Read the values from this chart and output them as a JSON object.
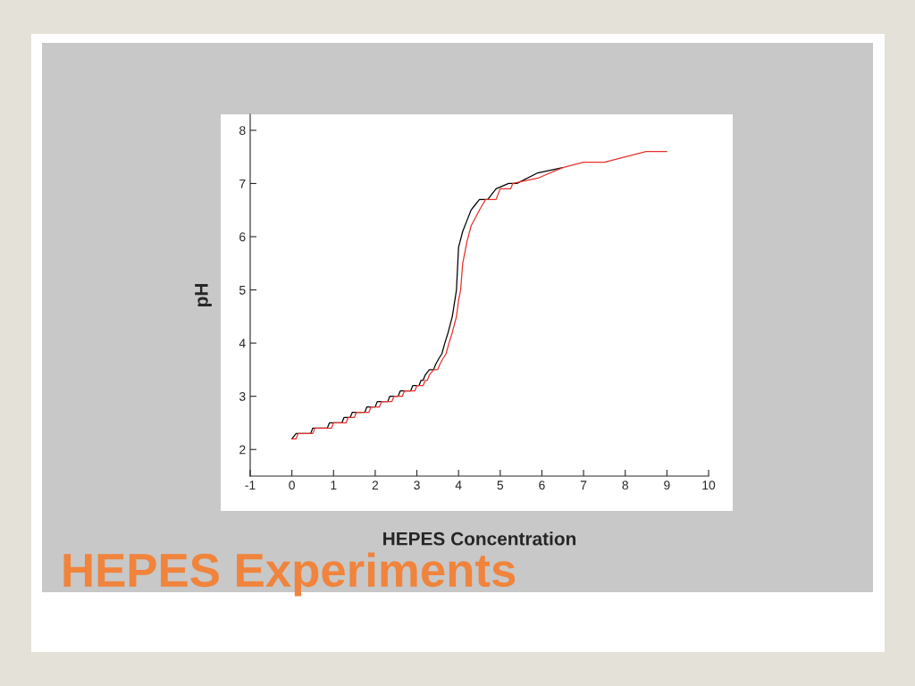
{
  "chart_data": {
    "type": "line",
    "title": "HEPES Experiments",
    "xlabel": "HEPES Concentration",
    "ylabel": "pH",
    "xlim": [
      -1,
      10
    ],
    "xticks": [
      -1,
      0,
      1,
      2,
      3,
      4,
      5,
      6,
      7,
      8,
      9,
      10
    ],
    "ylim": [
      1.5,
      8.3
    ],
    "yticks": [
      2,
      3,
      4,
      5,
      6,
      7,
      8
    ],
    "grid": false,
    "legend": false,
    "marker": "none",
    "line_style": "solid",
    "series": [
      {
        "color": "#000000",
        "x": [
          0,
          0.1,
          0.45,
          0.5,
          0.85,
          0.9,
          1.2,
          1.25,
          1.4,
          1.45,
          1.75,
          1.8,
          2.0,
          2.05,
          2.3,
          2.35,
          2.55,
          2.6,
          2.85,
          2.9,
          3.05,
          3.1,
          3.15,
          3.2,
          3.3,
          3.4,
          3.45,
          3.52,
          3.6,
          3.67,
          3.75,
          3.85,
          3.95,
          4.0,
          4.1,
          4.2,
          4.3,
          4.4,
          4.5,
          4.7,
          4.9,
          5.2,
          5.4,
          5.9,
          6.5
        ],
        "values": [
          2.2,
          2.3,
          2.3,
          2.4,
          2.4,
          2.5,
          2.5,
          2.6,
          2.6,
          2.7,
          2.7,
          2.8,
          2.8,
          2.9,
          2.9,
          3.0,
          3.0,
          3.1,
          3.1,
          3.2,
          3.2,
          3.3,
          3.3,
          3.4,
          3.5,
          3.5,
          3.6,
          3.7,
          3.8,
          4.0,
          4.2,
          4.5,
          5.0,
          5.8,
          6.1,
          6.3,
          6.5,
          6.6,
          6.7,
          6.7,
          6.9,
          7.0,
          7.0,
          7.2,
          7.3
        ]
      },
      {
        "color": "#e8302a",
        "x": [
          0,
          0.1,
          0.15,
          0.5,
          0.55,
          0.95,
          1.0,
          1.3,
          1.35,
          1.5,
          1.55,
          1.85,
          1.9,
          2.1,
          2.15,
          2.4,
          2.45,
          2.65,
          2.7,
          2.95,
          3.0,
          3.15,
          3.2,
          3.25,
          3.3,
          3.4,
          3.5,
          3.55,
          3.62,
          3.7,
          3.77,
          3.85,
          3.95,
          4.0,
          4.05,
          4.1,
          4.2,
          4.3,
          4.5,
          4.65,
          4.9,
          5.0,
          5.25,
          5.3,
          5.9,
          6.5,
          7.0,
          7.5,
          8.5,
          9.0
        ],
        "values": [
          2.2,
          2.2,
          2.3,
          2.3,
          2.4,
          2.4,
          2.5,
          2.5,
          2.6,
          2.6,
          2.7,
          2.7,
          2.8,
          2.8,
          2.9,
          2.9,
          3.0,
          3.0,
          3.1,
          3.1,
          3.2,
          3.2,
          3.3,
          3.3,
          3.4,
          3.5,
          3.5,
          3.6,
          3.7,
          3.8,
          4.0,
          4.2,
          4.5,
          4.8,
          5.0,
          5.5,
          5.9,
          6.2,
          6.5,
          6.7,
          6.7,
          6.9,
          6.9,
          7.0,
          7.1,
          7.3,
          7.4,
          7.4,
          7.6,
          7.6
        ]
      }
    ]
  }
}
